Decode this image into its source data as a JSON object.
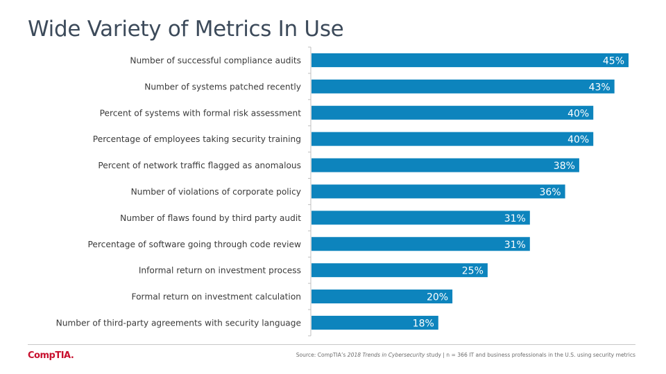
{
  "title": "Wide Variety of Metrics In Use",
  "logo_text": "CompTIA.",
  "source": {
    "prefix": "Source: CompTIA’s ",
    "study": "2018 Trends in Cybersecurity",
    "suffix": " study | n = 366 IT and business professionals in the U.S. using security metrics"
  },
  "colors": {
    "bar": "#0d84bd",
    "title": "#3c4a5a",
    "label": "#3a3a3a",
    "brand": "#c8102e"
  },
  "chart_data": {
    "type": "bar",
    "orientation": "horizontal",
    "categories": [
      "Number of successful compliance audits",
      "Number of systems patched recently",
      "Percent of systems with formal risk assessment",
      "Percentage of employees taking security training",
      "Percent of network traffic flagged as anomalous",
      "Number of violations of corporate policy",
      "Number of flaws found by third party audit",
      "Percentage of software going through code review",
      "Informal return on investment process",
      "Formal return on investment calculation",
      "Number of third-party agreements with security language"
    ],
    "values": [
      45,
      43,
      40,
      40,
      38,
      36,
      31,
      31,
      25,
      20,
      18
    ],
    "data_labels": [
      "45%",
      "43%",
      "40%",
      "40%",
      "38%",
      "36%",
      "31%",
      "31%",
      "25%",
      "20%",
      "18%"
    ],
    "xlim": [
      0,
      45
    ],
    "grid": false,
    "legend": "none"
  }
}
